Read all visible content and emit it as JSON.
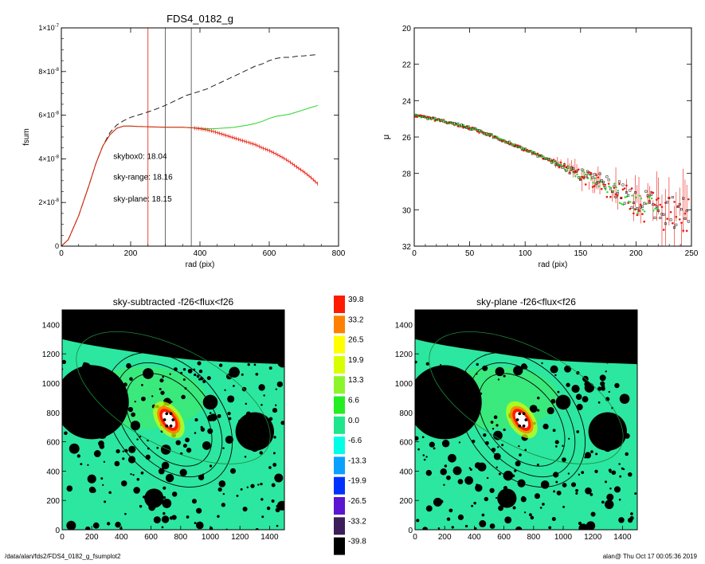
{
  "footer": {
    "path": "/data/alan/fds2/FDS4_0182_g_fsumplot2",
    "stamp": "alan@  Thu Oct 17 00:05:36 2019"
  },
  "chart_data": [
    {
      "type": "line",
      "title": "FDS4_0182_g",
      "xlabel": "rad (pix)",
      "ylabel": "fsum",
      "xlim": [
        0,
        800
      ],
      "ylim": [
        0,
        1e-07
      ],
      "xticks": [
        "0",
        "200",
        "400",
        "600",
        "800"
      ],
      "yticks": [
        {
          "v": 0,
          "mant": "0",
          "exp": ""
        },
        {
          "v": 2e-08,
          "mant": "2×10",
          "exp": "-8"
        },
        {
          "v": 4e-08,
          "mant": "4×10",
          "exp": "-8"
        },
        {
          "v": 6e-08,
          "mant": "6×10",
          "exp": "-8"
        },
        {
          "v": 8e-08,
          "mant": "8×10",
          "exp": "-8"
        },
        {
          "v": 1e-07,
          "mant": "1×10",
          "exp": "-7"
        }
      ],
      "vlines": [
        {
          "x": 250,
          "color": "#e8190f"
        },
        {
          "x": 300,
          "color": "#444444"
        },
        {
          "x": 375,
          "color": "#444444"
        }
      ],
      "annotations": [
        {
          "text": "skybox0: 18.04",
          "color": "#000000",
          "x": 150,
          "y": 4e-08
        },
        {
          "text": "sky-range: 18.16",
          "color": "#e8190f",
          "x": 150,
          "y": 3.05e-08
        },
        {
          "text": "sky-plane: 18.15",
          "color": "#2ad42a",
          "x": 150,
          "y": 2.05e-08
        }
      ],
      "series": [
        {
          "color": "#222222",
          "dash": "7,4",
          "x": [
            0,
            20,
            50,
            80,
            100,
            120,
            140,
            160,
            180,
            200,
            220,
            240,
            260,
            280,
            300,
            320,
            340,
            360,
            380,
            400,
            420,
            440,
            460,
            480,
            500,
            520,
            540,
            560,
            580,
            600,
            620,
            640,
            660,
            680,
            700,
            720,
            740
          ],
          "y": [
            0,
            3e-09,
            1.4e-08,
            2.8e-08,
            3.8e-08,
            4.6e-08,
            5.2e-08,
            5.55e-08,
            5.75e-08,
            5.9e-08,
            6e-08,
            6.1e-08,
            6.2e-08,
            6.32e-08,
            6.45e-08,
            6.6e-08,
            6.75e-08,
            6.9e-08,
            7e-08,
            7.1e-08,
            7.2e-08,
            7.35e-08,
            7.5e-08,
            7.65e-08,
            7.8e-08,
            7.95e-08,
            8.1e-08,
            8.25e-08,
            8.35e-08,
            8.5e-08,
            8.6e-08,
            8.65e-08,
            8.65e-08,
            8.7e-08,
            8.72e-08,
            8.75e-08,
            8.78e-08
          ]
        },
        {
          "color": "#2ad42a",
          "dash": "",
          "x": [
            0,
            20,
            50,
            80,
            100,
            120,
            140,
            160,
            180,
            200,
            220,
            250,
            300,
            350,
            380,
            400,
            420,
            440,
            460,
            480,
            500,
            520,
            540,
            560,
            580,
            600,
            620,
            640,
            660,
            680,
            700,
            720,
            740
          ],
          "y": [
            0,
            3e-09,
            1.4e-08,
            2.8e-08,
            3.8e-08,
            4.6e-08,
            5.1e-08,
            5.4e-08,
            5.5e-08,
            5.5e-08,
            5.48e-08,
            5.47e-08,
            5.45e-08,
            5.45e-08,
            5.42e-08,
            5.4e-08,
            5.38e-08,
            5.38e-08,
            5.4e-08,
            5.42e-08,
            5.45e-08,
            5.5e-08,
            5.55e-08,
            5.62e-08,
            5.72e-08,
            5.85e-08,
            5.95e-08,
            6e-08,
            6.05e-08,
            6.15e-08,
            6.25e-08,
            6.35e-08,
            6.45e-08
          ]
        },
        {
          "color": "#e8190f",
          "dash": "",
          "x": [
            0,
            20,
            50,
            80,
            100,
            120,
            140,
            160,
            180,
            200,
            220,
            250,
            300,
            350,
            380,
            400,
            420,
            440,
            460,
            480,
            500,
            520,
            540,
            560,
            580,
            600,
            620,
            640,
            660,
            680,
            700,
            720,
            740
          ],
          "y": [
            0,
            3e-09,
            1.4e-08,
            2.8e-08,
            3.8e-08,
            4.6e-08,
            5.1e-08,
            5.4e-08,
            5.5e-08,
            5.5e-08,
            5.48e-08,
            5.47e-08,
            5.45e-08,
            5.45e-08,
            5.42e-08,
            5.38e-08,
            5.33e-08,
            5.25e-08,
            5.15e-08,
            5.05e-08,
            4.95e-08,
            4.85e-08,
            4.75e-08,
            4.65e-08,
            4.5e-08,
            4.38e-08,
            4.22e-08,
            4.05e-08,
            3.85e-08,
            3.62e-08,
            3.4e-08,
            3.15e-08,
            2.85e-08
          ]
        }
      ]
    },
    {
      "type": "scatter",
      "title": "",
      "xlabel": "rad (pix)",
      "ylabel": "μ",
      "xlim": [
        0,
        250
      ],
      "ylim": [
        32,
        20
      ],
      "xticks": [
        "0",
        "50",
        "100",
        "150",
        "200",
        "250"
      ],
      "yticks": [
        "20",
        "22",
        "24",
        "26",
        "28",
        "30",
        "32"
      ],
      "profile": {
        "r": [
          0,
          25,
          50,
          75,
          100,
          125,
          150,
          175,
          200,
          225,
          250
        ],
        "mu": [
          24.8,
          25.1,
          25.5,
          26.05,
          26.7,
          27.35,
          28.1,
          28.85,
          29.6,
          30.2,
          30.6
        ]
      },
      "series": [
        {
          "name": "",
          "color": "#000000",
          "marker": "open-square"
        },
        {
          "name": "",
          "color": "#e8190f",
          "marker": "filled-circle"
        },
        {
          "name": "",
          "color": "#2ad42a",
          "marker": "filled-circle"
        }
      ]
    },
    {
      "type": "heatmap",
      "title": "sky-subtracted -f26<flux<f26",
      "xlim": [
        0,
        1500
      ],
      "ylim": [
        0,
        1500
      ],
      "xticks": [
        "0",
        "200",
        "400",
        "600",
        "800",
        "1000",
        "1200",
        "1400"
      ],
      "yticks": [
        "0",
        "200",
        "400",
        "600",
        "800",
        "1000",
        "1200",
        "1400"
      ]
    },
    {
      "type": "heatmap",
      "title": "sky-plane -f26<flux<f26",
      "xlim": [
        0,
        1500
      ],
      "ylim": [
        0,
        1500
      ],
      "xticks": [
        "0",
        "200",
        "400",
        "600",
        "800",
        "1000",
        "1200",
        "1400"
      ],
      "yticks": [
        "0",
        "200",
        "400",
        "600",
        "800",
        "1000",
        "1200",
        "1400"
      ]
    }
  ],
  "colorbar": {
    "levels": [
      {
        "label": "39.8",
        "color": "#ff1a00"
      },
      {
        "label": "33.2",
        "color": "#ff8000"
      },
      {
        "label": "26.5",
        "color": "#ffff00"
      },
      {
        "label": "19.9",
        "color": "#d8ff00"
      },
      {
        "label": "13.3",
        "color": "#8cf52a"
      },
      {
        "label": "6.6",
        "color": "#22ee22"
      },
      {
        "label": "0.0",
        "color": "#1ee68c"
      },
      {
        "label": "-6.6",
        "color": "#00ffe6"
      },
      {
        "label": "-13.3",
        "color": "#0aa0ff"
      },
      {
        "label": "-19.9",
        "color": "#0032ff"
      },
      {
        "label": "-26.5",
        "color": "#5a14d2"
      },
      {
        "label": "-33.2",
        "color": "#3c1e5a"
      },
      {
        "label": "-39.8",
        "color": "#000000"
      }
    ]
  }
}
